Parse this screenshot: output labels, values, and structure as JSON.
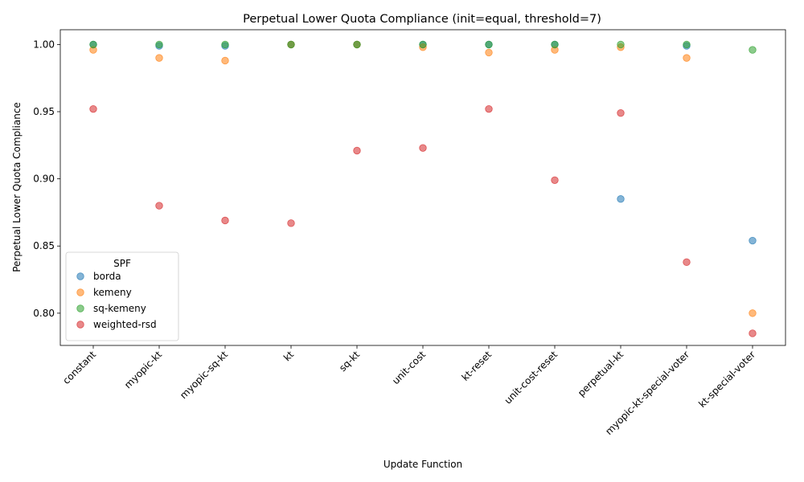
{
  "chart_data": {
    "type": "scatter",
    "title": "Perpetual Lower Quota Compliance (init=equal, threshold=7)",
    "xlabel": "Update Function",
    "ylabel": "Perpetual Lower Quota Compliance",
    "categories": [
      "constant",
      "myopic-kt",
      "myopic-sq-kt",
      "kt",
      "sq-kt",
      "unit-cost",
      "kt-reset",
      "unit-cost-reset",
      "perpetual-kt",
      "myopic-kt-special-voter",
      "kt-special-voter"
    ],
    "ylim": [
      0.776,
      1.011
    ],
    "yticks": [
      "0.80",
      "0.85",
      "0.90",
      "0.95",
      "1.00"
    ],
    "grid": false,
    "legend": {
      "title": "SPF",
      "position": "lower-left"
    },
    "series": [
      {
        "name": "borda",
        "color": "#1f77b4",
        "values": [
          1.0,
          0.999,
          0.999,
          1.0,
          1.0,
          1.0,
          1.0,
          1.0,
          0.885,
          0.999,
          0.854
        ]
      },
      {
        "name": "kemeny",
        "color": "#ff7f0e",
        "values": [
          0.996,
          0.99,
          0.988,
          1.0,
          1.0,
          0.998,
          0.994,
          0.996,
          0.998,
          0.99,
          0.8
        ]
      },
      {
        "name": "sq-kemeny",
        "color": "#2ca02c",
        "values": [
          1.0,
          1.0,
          1.0,
          1.0,
          1.0,
          1.0,
          1.0,
          1.0,
          1.0,
          1.0,
          0.996
        ]
      },
      {
        "name": "weighted-rsd",
        "color": "#d62728",
        "values": [
          0.952,
          0.88,
          0.869,
          0.867,
          0.921,
          0.923,
          0.952,
          0.899,
          0.949,
          0.838,
          0.785
        ]
      }
    ]
  }
}
